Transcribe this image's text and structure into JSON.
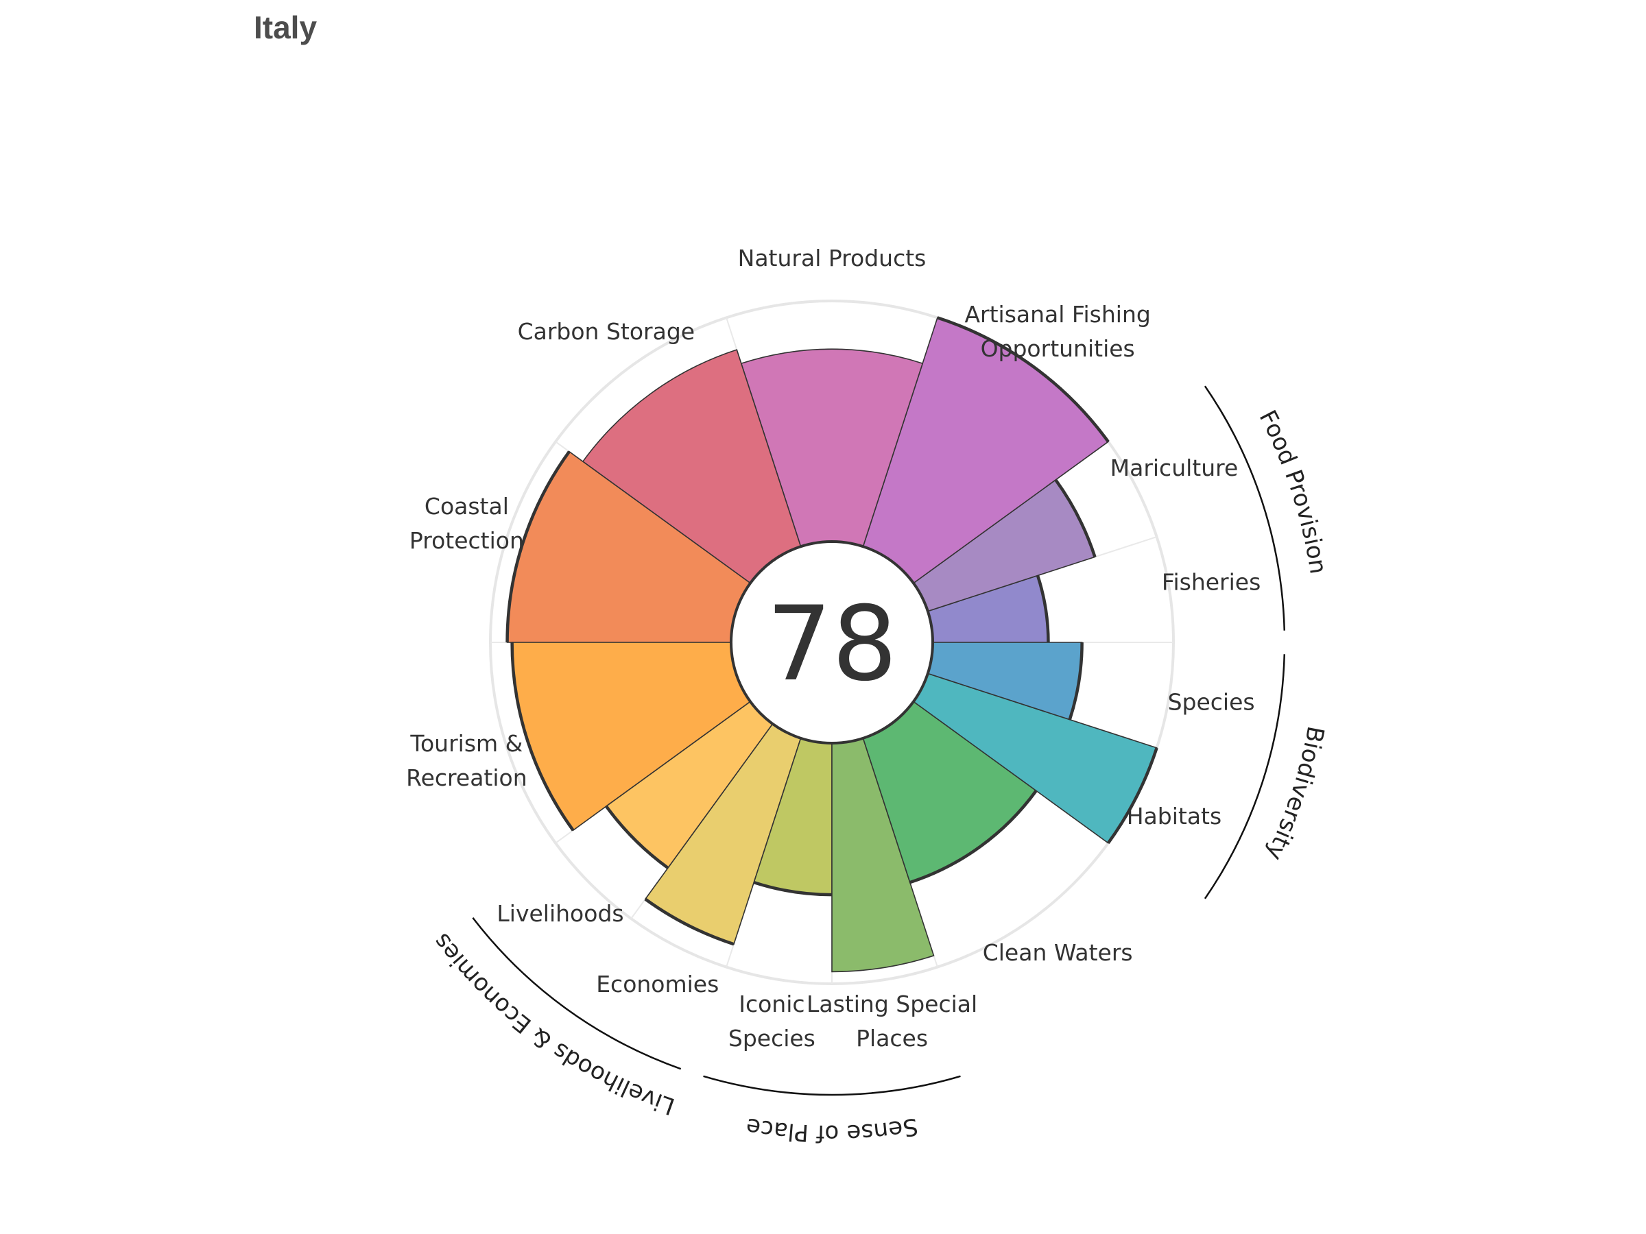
{
  "chart_data": {
    "type": "polar-bar",
    "title": "Italy",
    "center_score": "78",
    "rmax": 100,
    "categories": [
      {
        "name": "Fisheries",
        "label": [
          "Fisheries"
        ],
        "value": 48,
        "weight": 1,
        "color": "#9189cc",
        "thick": true
      },
      {
        "name": "Mariculture",
        "label": [
          "Mariculture"
        ],
        "value": 73,
        "weight": 1,
        "color": "#a78ac3",
        "thick": true
      },
      {
        "name": "Artisanal Fishing Opportunities",
        "label": [
          "Artisanal Fishing",
          "Opportunities"
        ],
        "value": 100,
        "weight": 2,
        "color": "#c478c7",
        "thick": true
      },
      {
        "name": "Natural Products",
        "label": [
          "Natural Products"
        ],
        "value": 80,
        "weight": 2,
        "color": "#d077b6",
        "thick": false
      },
      {
        "name": "Carbon Storage",
        "label": [
          "Carbon Storage"
        ],
        "value": 86,
        "weight": 2,
        "color": "#dd6f80",
        "thick": false
      },
      {
        "name": "Coastal Protection",
        "label": [
          "Coastal",
          "Protection"
        ],
        "value": 93,
        "weight": 2,
        "color": "#f28b59",
        "thick": true
      },
      {
        "name": "Tourism & Recreation",
        "label": [
          "Tourism &",
          "Recreation"
        ],
        "value": 91,
        "weight": 2,
        "color": "#fead4a",
        "thick": true
      },
      {
        "name": "Livelihoods",
        "label": [
          "Livelihoods"
        ],
        "value": 74,
        "weight": 1,
        "color": "#fdc462",
        "thick": true
      },
      {
        "name": "Economies",
        "label": [
          "Economies"
        ],
        "value": 90,
        "weight": 1,
        "color": "#e9ce6e",
        "thick": true
      },
      {
        "name": "Iconic Species",
        "label": [
          "Iconic",
          "Species"
        ],
        "value": 63,
        "weight": 1,
        "color": "#bfc863",
        "thick": true
      },
      {
        "name": "Lasting Special Places",
        "label": [
          "Lasting Special",
          "Places"
        ],
        "value": 95,
        "weight": 1,
        "color": "#8bbb6b",
        "thick": false
      },
      {
        "name": "Clean Waters",
        "label": [
          "Clean Waters"
        ],
        "value": 63,
        "weight": 2,
        "color": "#5db872",
        "thick": true
      },
      {
        "name": "Habitats",
        "label": [
          "Habitats"
        ],
        "value": 100,
        "weight": 1,
        "color": "#4fb7bf",
        "thick": true
      },
      {
        "name": "Species",
        "label": [
          "Species"
        ],
        "value": 62,
        "weight": 1,
        "color": "#5ba3cc",
        "thick": true
      }
    ],
    "groups": [
      {
        "name": "Food Provision",
        "members": [
          "Fisheries",
          "Mariculture"
        ]
      },
      {
        "name": "Biodiversity",
        "members": [
          "Habitats",
          "Species"
        ]
      },
      {
        "name": "Sense of Place",
        "members": [
          "Iconic Species",
          "Lasting Special Places"
        ]
      },
      {
        "name": "Livelihoods & Economies",
        "members": [
          "Livelihoods",
          "Economies"
        ]
      }
    ]
  }
}
